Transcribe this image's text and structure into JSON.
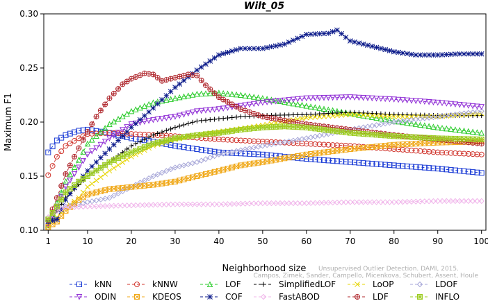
{
  "chart_data": {
    "type": "line",
    "title": "Wilt_05",
    "xlabel": "Neighborhood size",
    "ylabel": "Maximum F1",
    "xlim": [
      0,
      101
    ],
    "ylim": [
      0.1,
      0.3
    ],
    "xticks": [
      1,
      10,
      20,
      30,
      40,
      50,
      60,
      70,
      80,
      90,
      100
    ],
    "yticks": [
      0.1,
      0.15,
      0.2,
      0.25,
      0.3
    ],
    "ytick_labels": [
      "0.10",
      "0.15",
      "0.20",
      "0.25",
      "0.30"
    ],
    "grid": false,
    "legend_position": "bottom",
    "watermark": {
      "line1": "Unsupervised Outlier Detection. DAMI, 2015.",
      "line2": "Campos, Zimek, Sander, Campello, Micenkova, Schubert, Assent, Houle"
    },
    "series": [
      {
        "name": "kNN",
        "color": "#1f3fd6",
        "marker": "square",
        "points": [
          [
            1,
            0.172
          ],
          [
            3,
            0.183
          ],
          [
            5,
            0.188
          ],
          [
            8,
            0.192
          ],
          [
            10,
            0.193
          ],
          [
            15,
            0.19
          ],
          [
            20,
            0.185
          ],
          [
            25,
            0.182
          ],
          [
            30,
            0.178
          ],
          [
            40,
            0.172
          ],
          [
            50,
            0.17
          ],
          [
            60,
            0.166
          ],
          [
            70,
            0.163
          ],
          [
            80,
            0.16
          ],
          [
            90,
            0.157
          ],
          [
            100,
            0.153
          ]
        ]
      },
      {
        "name": "kNNW",
        "color": "#d0342c",
        "marker": "circle",
        "points": [
          [
            1,
            0.151
          ],
          [
            3,
            0.168
          ],
          [
            5,
            0.178
          ],
          [
            8,
            0.185
          ],
          [
            10,
            0.189
          ],
          [
            15,
            0.19
          ],
          [
            20,
            0.189
          ],
          [
            30,
            0.187
          ],
          [
            40,
            0.184
          ],
          [
            50,
            0.182
          ],
          [
            60,
            0.18
          ],
          [
            70,
            0.178
          ],
          [
            80,
            0.175
          ],
          [
            90,
            0.172
          ],
          [
            100,
            0.17
          ]
        ]
      },
      {
        "name": "LOF",
        "color": "#2ecc2e",
        "marker": "triangle",
        "points": [
          [
            1,
            0.105
          ],
          [
            3,
            0.125
          ],
          [
            5,
            0.145
          ],
          [
            8,
            0.165
          ],
          [
            10,
            0.18
          ],
          [
            15,
            0.198
          ],
          [
            20,
            0.21
          ],
          [
            25,
            0.218
          ],
          [
            30,
            0.222
          ],
          [
            35,
            0.226
          ],
          [
            40,
            0.227
          ],
          [
            45,
            0.225
          ],
          [
            50,
            0.222
          ],
          [
            60,
            0.215
          ],
          [
            70,
            0.208
          ],
          [
            80,
            0.201
          ],
          [
            90,
            0.195
          ],
          [
            100,
            0.19
          ]
        ]
      },
      {
        "name": "SimplifiedLOF",
        "color": "#000000",
        "marker": "plus",
        "points": [
          [
            1,
            0.104
          ],
          [
            3,
            0.118
          ],
          [
            5,
            0.13
          ],
          [
            8,
            0.142
          ],
          [
            10,
            0.15
          ],
          [
            15,
            0.163
          ],
          [
            20,
            0.178
          ],
          [
            25,
            0.188
          ],
          [
            30,
            0.195
          ],
          [
            35,
            0.201
          ],
          [
            40,
            0.203
          ],
          [
            45,
            0.205
          ],
          [
            50,
            0.206
          ],
          [
            60,
            0.207
          ],
          [
            70,
            0.209
          ],
          [
            80,
            0.207
          ],
          [
            90,
            0.206
          ],
          [
            100,
            0.206
          ]
        ]
      },
      {
        "name": "LoOP",
        "color": "#e6d400",
        "marker": "cross",
        "points": [
          [
            1,
            0.103
          ],
          [
            3,
            0.112
          ],
          [
            5,
            0.12
          ],
          [
            8,
            0.13
          ],
          [
            10,
            0.14
          ],
          [
            15,
            0.155
          ],
          [
            20,
            0.168
          ],
          [
            25,
            0.178
          ],
          [
            30,
            0.184
          ],
          [
            35,
            0.188
          ],
          [
            40,
            0.191
          ],
          [
            50,
            0.197
          ],
          [
            60,
            0.204
          ],
          [
            70,
            0.207
          ],
          [
            80,
            0.205
          ],
          [
            90,
            0.205
          ],
          [
            100,
            0.208
          ]
        ]
      },
      {
        "name": "LDOF",
        "color": "#a7a7d8",
        "marker": "diamond",
        "points": [
          [
            1,
            0.112
          ],
          [
            3,
            0.118
          ],
          [
            5,
            0.122
          ],
          [
            8,
            0.124
          ],
          [
            10,
            0.126
          ],
          [
            15,
            0.13
          ],
          [
            20,
            0.14
          ],
          [
            25,
            0.15
          ],
          [
            30,
            0.158
          ],
          [
            35,
            0.163
          ],
          [
            40,
            0.17
          ],
          [
            50,
            0.178
          ],
          [
            60,
            0.185
          ],
          [
            70,
            0.193
          ],
          [
            80,
            0.2
          ],
          [
            90,
            0.205
          ],
          [
            100,
            0.21
          ]
        ]
      },
      {
        "name": "ODIN",
        "color": "#9130d6",
        "marker": "triangle-down",
        "points": [
          [
            1,
            0.106
          ],
          [
            3,
            0.122
          ],
          [
            5,
            0.14
          ],
          [
            8,
            0.158
          ],
          [
            10,
            0.17
          ],
          [
            15,
            0.185
          ],
          [
            20,
            0.198
          ],
          [
            25,
            0.202
          ],
          [
            30,
            0.205
          ],
          [
            35,
            0.21
          ],
          [
            40,
            0.212
          ],
          [
            45,
            0.215
          ],
          [
            50,
            0.218
          ],
          [
            55,
            0.22
          ],
          [
            60,
            0.222
          ],
          [
            70,
            0.223
          ],
          [
            80,
            0.221
          ],
          [
            90,
            0.218
          ],
          [
            100,
            0.214
          ]
        ]
      },
      {
        "name": "KDEOS",
        "color": "#f0a818",
        "marker": "square-x",
        "points": [
          [
            1,
            0.103
          ],
          [
            3,
            0.108
          ],
          [
            5,
            0.118
          ],
          [
            8,
            0.128
          ],
          [
            10,
            0.133
          ],
          [
            15,
            0.138
          ],
          [
            20,
            0.14
          ],
          [
            25,
            0.142
          ],
          [
            30,
            0.145
          ],
          [
            35,
            0.15
          ],
          [
            40,
            0.155
          ],
          [
            45,
            0.16
          ],
          [
            50,
            0.163
          ],
          [
            60,
            0.17
          ],
          [
            70,
            0.175
          ],
          [
            80,
            0.179
          ],
          [
            90,
            0.181
          ],
          [
            100,
            0.182
          ]
        ]
      },
      {
        "name": "COF",
        "color": "#0b1a8a",
        "marker": "star",
        "points": [
          [
            1,
            0.108
          ],
          [
            3,
            0.11
          ],
          [
            5,
            0.128
          ],
          [
            8,
            0.145
          ],
          [
            10,
            0.155
          ],
          [
            15,
            0.175
          ],
          [
            20,
            0.195
          ],
          [
            25,
            0.213
          ],
          [
            30,
            0.232
          ],
          [
            35,
            0.248
          ],
          [
            40,
            0.262
          ],
          [
            45,
            0.268
          ],
          [
            50,
            0.268
          ],
          [
            55,
            0.272
          ],
          [
            60,
            0.281
          ],
          [
            65,
            0.282
          ],
          [
            67,
            0.285
          ],
          [
            70,
            0.275
          ],
          [
            75,
            0.27
          ],
          [
            80,
            0.265
          ],
          [
            85,
            0.262
          ],
          [
            90,
            0.262
          ],
          [
            95,
            0.263
          ],
          [
            100,
            0.263
          ]
        ]
      },
      {
        "name": "FastABOD",
        "color": "#f0b4ea",
        "marker": "diamond",
        "points": [
          [
            1,
            0.112
          ],
          [
            3,
            0.118
          ],
          [
            5,
            0.121
          ],
          [
            10,
            0.122
          ],
          [
            20,
            0.123
          ],
          [
            30,
            0.124
          ],
          [
            40,
            0.124
          ],
          [
            50,
            0.125
          ],
          [
            60,
            0.125
          ],
          [
            70,
            0.126
          ],
          [
            80,
            0.126
          ],
          [
            90,
            0.127
          ],
          [
            100,
            0.127
          ]
        ]
      },
      {
        "name": "LDF",
        "color": "#b0282e",
        "marker": "circle-plus",
        "points": [
          [
            1,
            0.109
          ],
          [
            3,
            0.13
          ],
          [
            5,
            0.152
          ],
          [
            8,
            0.176
          ],
          [
            10,
            0.191
          ],
          [
            12,
            0.205
          ],
          [
            15,
            0.222
          ],
          [
            18,
            0.235
          ],
          [
            20,
            0.24
          ],
          [
            23,
            0.245
          ],
          [
            25,
            0.244
          ],
          [
            27,
            0.238
          ],
          [
            30,
            0.241
          ],
          [
            33,
            0.244
          ],
          [
            35,
            0.243
          ],
          [
            37,
            0.234
          ],
          [
            40,
            0.223
          ],
          [
            45,
            0.212
          ],
          [
            50,
            0.205
          ],
          [
            60,
            0.198
          ],
          [
            70,
            0.193
          ],
          [
            80,
            0.188
          ],
          [
            90,
            0.184
          ],
          [
            100,
            0.18
          ]
        ]
      },
      {
        "name": "INFLO",
        "color": "#9ccc20",
        "marker": "star-box",
        "points": [
          [
            1,
            0.11
          ],
          [
            3,
            0.122
          ],
          [
            5,
            0.135
          ],
          [
            8,
            0.145
          ],
          [
            10,
            0.15
          ],
          [
            15,
            0.163
          ],
          [
            20,
            0.172
          ],
          [
            25,
            0.18
          ],
          [
            30,
            0.185
          ],
          [
            35,
            0.188
          ],
          [
            40,
            0.19
          ],
          [
            45,
            0.193
          ],
          [
            50,
            0.195
          ],
          [
            55,
            0.196
          ],
          [
            60,
            0.195
          ],
          [
            70,
            0.19
          ],
          [
            80,
            0.187
          ],
          [
            90,
            0.185
          ],
          [
            100,
            0.184
          ]
        ]
      }
    ]
  }
}
